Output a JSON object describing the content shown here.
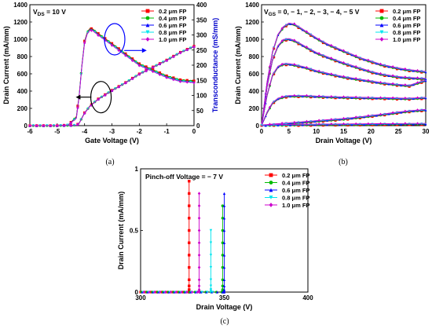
{
  "colors": {
    "fp_0_2": "#ff0000",
    "fp_0_4": "#00bb00",
    "fp_0_6": "#0000ff",
    "fp_0_8": "#00e5ee",
    "fp_1_0": "#cc00cc",
    "transconductance_axis": "#0000cc"
  },
  "chart_data": [
    {
      "id": "a",
      "caption": "(a)",
      "type": "line",
      "annotation": "V_DS = 10 V",
      "annotation_parts": {
        "main": "V",
        "sub": "DS",
        "rest": " = 10 V"
      },
      "xlabel": "Gate Voltage (V)",
      "ylabel": "Drain Current (mA/mm)",
      "y2label": "Transconductance (mS/mm)",
      "xlim": [
        -6,
        0
      ],
      "ylim": [
        0,
        1400
      ],
      "y2lim": [
        0,
        400
      ],
      "xticks": [
        "-6",
        "-5",
        "-4",
        "-3",
        "-2",
        "-1",
        "0"
      ],
      "yticks": [
        "0",
        "200",
        "400",
        "600",
        "800",
        "1000",
        "1200",
        "1400"
      ],
      "y2ticks": [
        "0",
        "50",
        "100",
        "150",
        "200",
        "250",
        "300",
        "350",
        "400"
      ],
      "legend": [
        "0.2 μm FP",
        "0.4 μm FP",
        "0.6 μm FP",
        "0.8 μm FP",
        "1.0 μm FP"
      ],
      "legend_position": "top-right",
      "series": [
        {
          "name": "0.2 μm FP",
          "kind": "current",
          "x": [
            -6,
            -5,
            -4.6,
            -4.3,
            -4.2,
            -4.1,
            -4.0,
            -3.8,
            -3.5,
            -3.0,
            -2.5,
            -2.0,
            -1.5,
            -1.0,
            -0.5,
            0
          ],
          "values": [
            0,
            0,
            2,
            5,
            30,
            90,
            150,
            230,
            310,
            410,
            500,
            600,
            680,
            760,
            850,
            920
          ]
        },
        {
          "name": "0.4 μm FP",
          "kind": "current",
          "x": [
            -6,
            -5,
            -4.6,
            -4.3,
            -4.2,
            -4.1,
            -4.0,
            -3.8,
            -3.5,
            -3.0,
            -2.5,
            -2.0,
            -1.5,
            -1.0,
            -0.5,
            0
          ],
          "values": [
            0,
            0,
            2,
            5,
            28,
            88,
            148,
            228,
            308,
            408,
            498,
            598,
            678,
            758,
            848,
            918
          ]
        },
        {
          "name": "0.6 μm FP",
          "kind": "current",
          "x": [
            -6,
            -5,
            -4.6,
            -4.3,
            -4.2,
            -4.1,
            -4.0,
            -3.8,
            -3.5,
            -3.0,
            -2.5,
            -2.0,
            -1.5,
            -1.0,
            -0.5,
            0
          ],
          "values": [
            0,
            0,
            2,
            5,
            26,
            86,
            146,
            226,
            306,
            406,
            496,
            596,
            676,
            756,
            846,
            916
          ]
        },
        {
          "name": "0.8 μm FP",
          "kind": "current",
          "x": [
            -6,
            -5,
            -4.6,
            -4.3,
            -4.2,
            -4.1,
            -4.0,
            -3.8,
            -3.5,
            -3.0,
            -2.5,
            -2.0,
            -1.5,
            -1.0,
            -0.5,
            0
          ],
          "values": [
            0,
            0,
            2,
            5,
            25,
            85,
            145,
            225,
            305,
            405,
            495,
            595,
            675,
            755,
            845,
            915
          ]
        },
        {
          "name": "1.0 μm FP",
          "kind": "current",
          "x": [
            -6,
            -5,
            -4.6,
            -4.3,
            -4.2,
            -4.1,
            -4.0,
            -3.8,
            -3.5,
            -3.0,
            -2.5,
            -2.0,
            -1.5,
            -1.0,
            -0.5,
            0
          ],
          "values": [
            0,
            0,
            2,
            5,
            24,
            84,
            144,
            224,
            304,
            404,
            494,
            594,
            674,
            754,
            844,
            914
          ]
        },
        {
          "name": "0.2 μm FP",
          "kind": "gm",
          "x": [
            -6,
            -5,
            -4.6,
            -4.3,
            -4.2,
            -4.1,
            -4.0,
            -3.9,
            -3.8,
            -3.7,
            -3.5,
            -3.0,
            -2.5,
            -2.0,
            -1.5,
            -1.0,
            -0.5,
            0
          ],
          "values": [
            0,
            0,
            2,
            30,
            100,
            200,
            280,
            310,
            322,
            320,
            305,
            272,
            238,
            205,
            185,
            165,
            152,
            148
          ]
        },
        {
          "name": "0.4 μm FP",
          "kind": "gm",
          "x": [
            -6,
            -5,
            -4.6,
            -4.3,
            -4.2,
            -4.1,
            -4.0,
            -3.9,
            -3.8,
            -3.7,
            -3.5,
            -3.0,
            -2.5,
            -2.0,
            -1.5,
            -1.0,
            -0.5,
            0
          ],
          "values": [
            0,
            0,
            2,
            28,
            98,
            198,
            278,
            308,
            320,
            318,
            303,
            270,
            236,
            203,
            183,
            163,
            150,
            146
          ]
        },
        {
          "name": "0.6 μm FP",
          "kind": "gm",
          "x": [
            -6,
            -5,
            -4.6,
            -4.3,
            -4.2,
            -4.1,
            -4.0,
            -3.9,
            -3.8,
            -3.7,
            -3.5,
            -3.0,
            -2.5,
            -2.0,
            -1.5,
            -1.0,
            -0.5,
            0
          ],
          "values": [
            0,
            0,
            2,
            26,
            96,
            196,
            276,
            306,
            318,
            316,
            301,
            268,
            234,
            201,
            181,
            161,
            148,
            144
          ]
        },
        {
          "name": "0.8 μm FP",
          "kind": "gm",
          "x": [
            -6,
            -5,
            -4.6,
            -4.3,
            -4.2,
            -4.1,
            -4.0,
            -3.9,
            -3.8,
            -3.7,
            -3.5,
            -3.0,
            -2.5,
            -2.0,
            -1.5,
            -1.0,
            -0.5,
            0
          ],
          "values": [
            0,
            0,
            2,
            25,
            95,
            195,
            275,
            305,
            317,
            315,
            300,
            267,
            233,
            200,
            180,
            160,
            147,
            143
          ]
        },
        {
          "name": "1.0 μm FP",
          "kind": "gm",
          "x": [
            -6,
            -5,
            -4.6,
            -4.3,
            -4.2,
            -4.1,
            -4.0,
            -3.9,
            -3.8,
            -3.7,
            -3.5,
            -3.0,
            -2.5,
            -2.0,
            -1.5,
            -1.0,
            -0.5,
            0
          ],
          "values": [
            0,
            0,
            2,
            24,
            94,
            194,
            274,
            304,
            316,
            314,
            299,
            266,
            232,
            199,
            179,
            159,
            146,
            142
          ]
        }
      ]
    },
    {
      "id": "b",
      "caption": "(b)",
      "type": "line",
      "annotation": "V_GS = 0, − 1, − 2, − 3, − 4, − 5 V",
      "annotation_parts": {
        "main": "V",
        "sub": "GS",
        "rest": " = 0, − 1, − 2, − 3, − 4, − 5 V"
      },
      "xlabel": "Drain Voltage (V)",
      "ylabel": "Drain Current (mA/mm)",
      "xlim": [
        0,
        30
      ],
      "ylim": [
        0,
        1400
      ],
      "xticks": [
        "0",
        "5",
        "10",
        "15",
        "20",
        "25",
        "30"
      ],
      "yticks": [
        "0",
        "200",
        "400",
        "600",
        "800",
        "1000",
        "1200",
        "1400"
      ],
      "legend": [
        "0.2 μm FP",
        "0.4 μm FP",
        "0.6 μm FP",
        "0.8 μm FP",
        "1.0 μm FP"
      ],
      "legend_position": "top-right",
      "x": [
        0,
        1,
        2,
        3,
        4,
        5,
        6,
        8,
        10,
        12,
        15,
        18,
        20,
        22,
        25,
        27,
        30
      ],
      "curves": [
        {
          "vgs": 0,
          "values": [
            0,
            500,
            850,
            1050,
            1140,
            1180,
            1170,
            1090,
            1010,
            940,
            860,
            780,
            740,
            700,
            660,
            640,
            620
          ]
        },
        {
          "vgs": -1,
          "values": [
            0,
            450,
            760,
            920,
            990,
            1000,
            980,
            910,
            840,
            790,
            720,
            660,
            620,
            590,
            560,
            550,
            540
          ]
        },
        {
          "vgs": -2,
          "values": [
            0,
            350,
            580,
            680,
            710,
            710,
            700,
            670,
            630,
            600,
            560,
            530,
            510,
            490,
            470,
            460,
            520
          ]
        },
        {
          "vgs": -3,
          "values": [
            0,
            150,
            260,
            310,
            330,
            340,
            340,
            340,
            335,
            330,
            325,
            320,
            318,
            316,
            312,
            310,
            320
          ]
        },
        {
          "vgs": -4,
          "values": [
            0,
            5,
            10,
            15,
            20,
            25,
            30,
            40,
            50,
            60,
            75,
            95,
            110,
            125,
            150,
            165,
            180
          ]
        },
        {
          "vgs": -5,
          "values": [
            0,
            2,
            3,
            4,
            5,
            6,
            7,
            8,
            10,
            11,
            12,
            13,
            14,
            15,
            16,
            17,
            18
          ]
        }
      ]
    },
    {
      "id": "c",
      "caption": "(c)",
      "type": "scatter",
      "annotation": "Pinch-off Voltage = − 7 V",
      "xlabel": "Drain Voltage (V)",
      "ylabel": "Drain Current (mA/mm)",
      "xlim": [
        300,
        400
      ],
      "ylim": [
        0,
        1
      ],
      "xticks": [
        "300",
        "350",
        "400"
      ],
      "yticks": [
        "0",
        "0.5",
        "1"
      ],
      "legend": [
        "0.2 μm FP",
        "0.4 μm FP",
        "0.6 μm FP",
        "0.8 μm FP",
        "1.0 μm FP"
      ],
      "legend_position": "top-right",
      "series": [
        {
          "name": "0.2 μm FP",
          "breakdown_x": 329,
          "values": [
            0,
            0.01,
            0.02,
            0.05,
            0.1,
            0.2,
            0.3,
            0.4,
            0.5,
            0.6,
            0.7,
            0.8,
            0.9
          ]
        },
        {
          "name": "0.4 μm FP",
          "breakdown_x": 349,
          "values": [
            0,
            0.01,
            0.02,
            0.05,
            0.1,
            0.2,
            0.3,
            0.4,
            0.5,
            0.6,
            0.7
          ]
        },
        {
          "name": "0.6 μm FP",
          "breakdown_x": 350,
          "values": [
            0,
            0.01,
            0.02,
            0.05,
            0.1,
            0.2,
            0.3,
            0.4,
            0.5,
            0.6,
            0.7,
            0.8
          ]
        },
        {
          "name": "0.8 μm FP",
          "breakdown_x": 342,
          "values": [
            0,
            0.01,
            0.02,
            0.05,
            0.1,
            0.2,
            0.3,
            0.4,
            0.5
          ]
        },
        {
          "name": "1.0 μm FP",
          "breakdown_x": 335,
          "values": [
            0,
            0.01,
            0.02,
            0.05,
            0.1,
            0.2,
            0.3,
            0.4,
            0.5,
            0.6,
            0.7,
            0.8
          ]
        }
      ]
    }
  ]
}
